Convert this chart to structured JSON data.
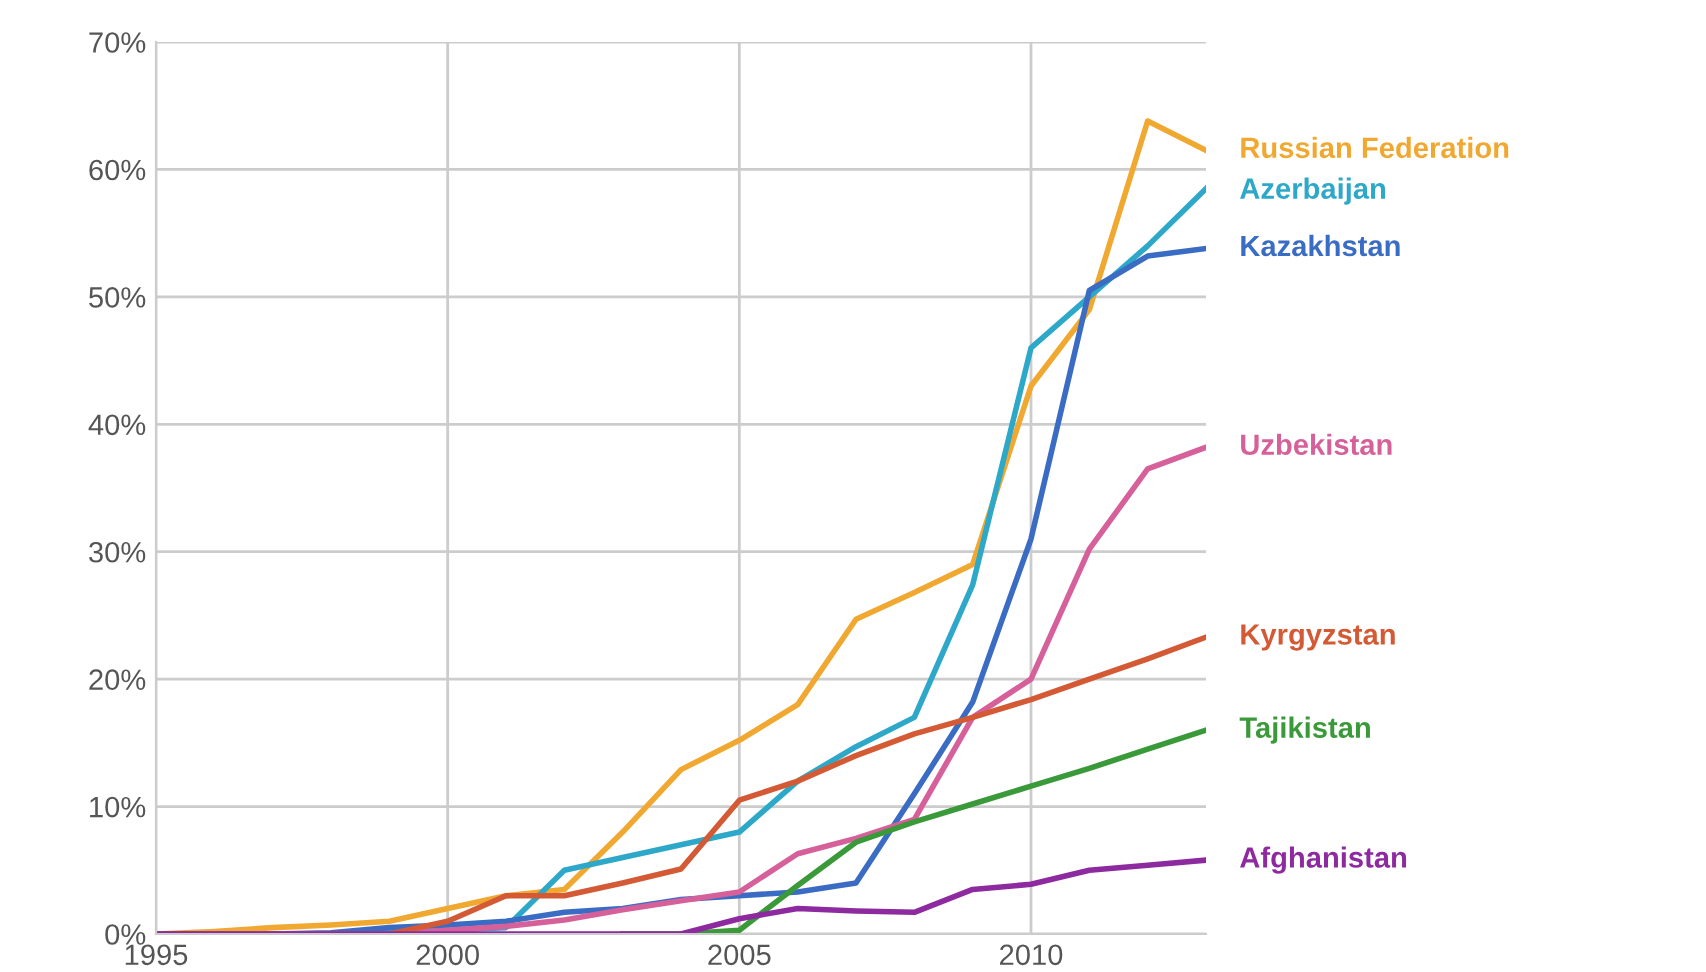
{
  "chart_data": {
    "type": "line",
    "x": [
      1995,
      1996,
      1997,
      1998,
      1999,
      2000,
      2001,
      2002,
      2003,
      2004,
      2005,
      2006,
      2007,
      2008,
      2009,
      2010,
      2011,
      2012,
      2013
    ],
    "series": [
      {
        "name": "Russian Federation",
        "color": "#f0a830",
        "values": [
          0,
          0.2,
          0.5,
          0.7,
          1,
          2,
          3,
          3.5,
          8,
          12.9,
          15.2,
          18,
          24.7,
          26.8,
          29,
          43,
          49,
          63.8,
          61.5
        ]
      },
      {
        "name": "Azerbaijan",
        "color": "#2ea8c8",
        "values": [
          0,
          0,
          0,
          0,
          0.1,
          0.3,
          0.5,
          5,
          6,
          7,
          8,
          12,
          14.7,
          17,
          27.4,
          46,
          50,
          54,
          58.5
        ]
      },
      {
        "name": "Kazakhstan",
        "color": "#3b6cc4",
        "values": [
          0,
          0,
          0,
          0.1,
          0.5,
          0.7,
          1,
          1.7,
          2,
          2.7,
          3,
          3.3,
          4,
          11,
          18.2,
          31,
          50.5,
          53.2,
          53.8
        ]
      },
      {
        "name": "Uzbekistan",
        "color": "#d6609a",
        "values": [
          null,
          null,
          null,
          0,
          0,
          0.3,
          0.6,
          1.1,
          1.9,
          2.6,
          3.3,
          6.3,
          7.5,
          9,
          17,
          20,
          30.2,
          36.5,
          38.2
        ]
      },
      {
        "name": "Kyrgyzstan",
        "color": "#d35a34",
        "values": [
          0,
          0,
          0,
          0,
          0,
          1,
          3,
          3,
          4,
          5.1,
          10.5,
          12,
          14,
          15.7,
          17,
          18.4,
          20,
          21.6,
          23.3
        ]
      },
      {
        "name": "Tajikistan",
        "color": "#3a9a3a",
        "values": [
          null,
          null,
          null,
          null,
          null,
          null,
          null,
          null,
          0,
          0,
          0.3,
          3.8,
          7.2,
          8.8,
          10.2,
          11.6,
          13,
          14.5,
          16
        ]
      },
      {
        "name": "Afghanistan",
        "color": "#8e2aa0",
        "values": [
          0,
          0,
          0,
          0,
          0,
          0,
          0,
          0,
          0,
          0,
          1.2,
          2,
          1.8,
          1.7,
          3.5,
          3.9,
          5,
          5.4,
          5.8
        ]
      }
    ],
    "xlim": [
      1995,
      2013
    ],
    "xticks": [
      1995,
      2000,
      2005,
      2010
    ],
    "ylim": [
      0,
      70
    ],
    "yticks": [
      {
        "value": 0,
        "label": "0%"
      },
      {
        "value": 10,
        "label": "10%"
      },
      {
        "value": 20,
        "label": "20%"
      },
      {
        "value": 30,
        "label": "30%"
      },
      {
        "value": 40,
        "label": "40%"
      },
      {
        "value": 50,
        "label": "50%"
      },
      {
        "value": 60,
        "label": "60%"
      },
      {
        "value": 70,
        "label": "70%"
      }
    ],
    "grid": true,
    "line_style": "solid",
    "marker": "none",
    "legend": false
  }
}
